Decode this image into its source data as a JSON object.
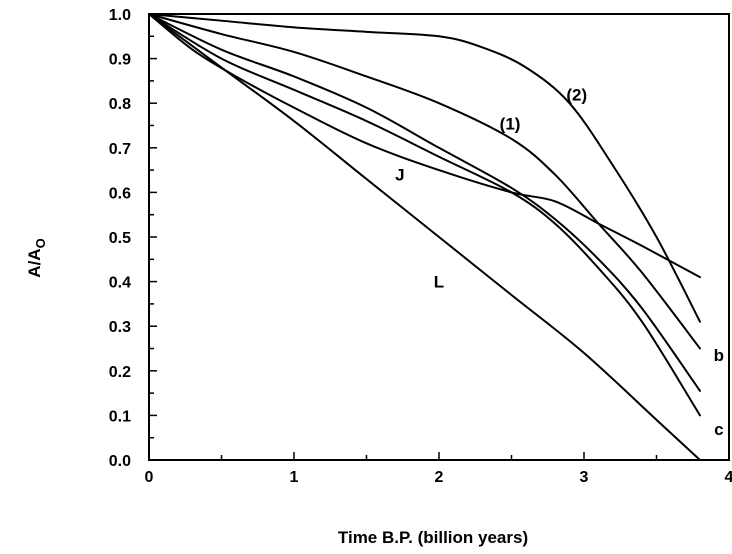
{
  "chart_data": {
    "type": "line",
    "title": "",
    "xlabel": "Time B.P. (billion years)",
    "ylabel_main": "A/A",
    "ylabel_sub": "O",
    "xlim": [
      0,
      4
    ],
    "ylim": [
      0,
      1
    ],
    "xticks": [
      "0",
      "1",
      "2",
      "3",
      "4"
    ],
    "yticks": [
      "0.0",
      "0.1",
      "0.2",
      "0.3",
      "0.4",
      "0.5",
      "0.6",
      "0.7",
      "0.8",
      "0.9",
      "1.0"
    ],
    "grid": false,
    "legend": "none",
    "annotations": [
      {
        "text": "(2)",
        "x": 2.95,
        "y": 0.82
      },
      {
        "text": "(1)",
        "x": 2.49,
        "y": 0.755
      },
      {
        "text": "J",
        "x": 1.73,
        "y": 0.64
      },
      {
        "text": "L",
        "x": 2.0,
        "y": 0.4
      },
      {
        "text": "b",
        "x": 3.93,
        "y": 0.235
      },
      {
        "text": "c",
        "x": 3.93,
        "y": 0.07
      }
    ],
    "series": [
      {
        "x": [
          0,
          0.5,
          1,
          1.5,
          2,
          2.3,
          2.6,
          2.9,
          3.2,
          3.5,
          3.8
        ],
        "y": [
          1.0,
          0.985,
          0.97,
          0.96,
          0.95,
          0.925,
          0.88,
          0.8,
          0.66,
          0.5,
          0.31
        ]
      },
      {
        "x": [
          0,
          0.5,
          1,
          1.5,
          2,
          2.5,
          2.8,
          3.1,
          3.4,
          3.8
        ],
        "y": [
          1.0,
          0.955,
          0.915,
          0.86,
          0.8,
          0.72,
          0.64,
          0.53,
          0.42,
          0.25
        ]
      },
      {
        "x": [
          0,
          0.5,
          1,
          1.5,
          2,
          2.5,
          2.8,
          3.1,
          3.4,
          3.8
        ],
        "y": [
          1.0,
          0.92,
          0.86,
          0.79,
          0.7,
          0.61,
          0.54,
          0.45,
          0.34,
          0.155
        ]
      },
      {
        "x": [
          0,
          0.5,
          1,
          1.5,
          2,
          2.5,
          2.8,
          3.1,
          3.4,
          3.8
        ],
        "y": [
          1.0,
          0.9,
          0.83,
          0.76,
          0.68,
          0.6,
          0.53,
          0.43,
          0.31,
          0.1
        ]
      },
      {
        "x": [
          0,
          0.3,
          0.6,
          1,
          1.5,
          2,
          2.5,
          2.8,
          3.1,
          3.4,
          3.8
        ],
        "y": [
          1.0,
          0.92,
          0.86,
          0.79,
          0.71,
          0.65,
          0.6,
          0.58,
          0.53,
          0.48,
          0.41
        ]
      },
      {
        "x": [
          0,
          0.5,
          1,
          1.5,
          2,
          2.5,
          3,
          3.5,
          3.8
        ],
        "y": [
          1.0,
          0.88,
          0.76,
          0.63,
          0.5,
          0.37,
          0.24,
          0.09,
          0.0
        ]
      }
    ]
  }
}
